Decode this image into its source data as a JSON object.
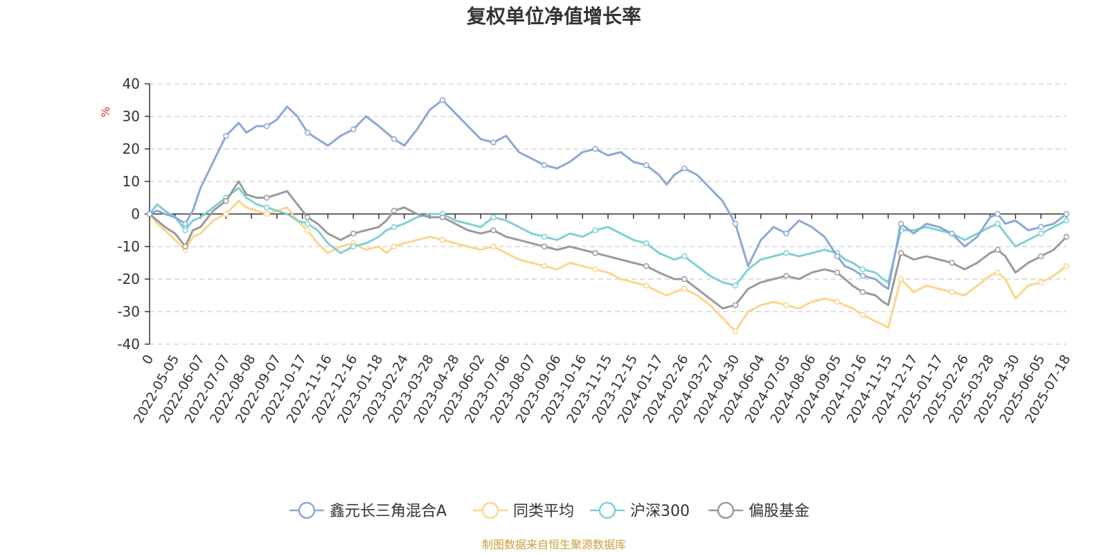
{
  "colors": {
    "series1": "#8aa8d6",
    "series2": "#fbd58a",
    "series3": "#7ed0d4",
    "series4": "#9a9a9a",
    "grid": "#cccccc",
    "axis": "#333333",
    "unit": "#e8251f",
    "source": "#c8a03c"
  },
  "footer": {
    "source_text": "制图数据来自恒生聚源数据库"
  },
  "chart_data": {
    "type": "line",
    "title": "复权单位净值增长率",
    "ylabel": "%",
    "ylim": [
      -40,
      40
    ],
    "yticks": [
      40,
      30,
      20,
      10,
      0,
      -10,
      -20,
      -30,
      -40
    ],
    "xticks": [
      "0",
      "2022-05-05",
      "2022-06-07",
      "2022-07-07",
      "2022-08-08",
      "2022-09-07",
      "2022-10-17",
      "2022-11-16",
      "2022-12-16",
      "2023-01-18",
      "2023-02-24",
      "2023-03-28",
      "2023-04-28",
      "2023-06-02",
      "2023-07-06",
      "2023-08-07",
      "2023-09-06",
      "2023-10-16",
      "2023-11-15",
      "2023-12-15",
      "2024-01-17",
      "2024-02-26",
      "2024-03-27",
      "2024-04-30",
      "2024-06-04",
      "2024-07-05",
      "2024-08-06",
      "2024-09-05",
      "2024-10-16",
      "2024-11-15",
      "2024-12-17",
      "2025-01-17",
      "2025-02-26",
      "2025-03-28",
      "2025-04-30",
      "2025-06-05",
      "2025-07-18"
    ],
    "x_range": [
      0,
      36
    ],
    "legend_position": "bottom-center",
    "grid": true,
    "series": [
      {
        "name": "鑫元长三角混合A",
        "x": [
          0,
          0.3,
          0.6,
          1,
          1.4,
          1.7,
          2,
          2.5,
          3,
          3.5,
          3.8,
          4.2,
          4.6,
          5,
          5.4,
          5.8,
          6.2,
          6.6,
          7,
          7.5,
          8,
          8.5,
          9,
          9.3,
          9.6,
          10,
          10.5,
          11,
          11.5,
          12,
          12.5,
          13,
          13.5,
          14,
          14.5,
          15,
          15.5,
          16,
          16.5,
          17,
          17.5,
          18,
          18.5,
          19,
          19.5,
          20,
          20.3,
          20.6,
          21,
          21.5,
          22,
          22.5,
          23,
          23.5,
          24,
          24.5,
          25,
          25.5,
          26,
          26.5,
          27,
          27.3,
          27.6,
          27.8,
          28,
          28.5,
          28.8,
          29,
          29.5,
          30,
          30.5,
          31,
          31.5,
          32,
          32.5,
          33,
          33.3,
          33.6,
          34,
          34.5,
          35,
          35.5,
          36
        ],
        "values": [
          0,
          1,
          0,
          -1,
          -3,
          1,
          8,
          16,
          24,
          28,
          25,
          27,
          27,
          29,
          33,
          30,
          25,
          23,
          21,
          24,
          26,
          30,
          27,
          25,
          23,
          21,
          26,
          32,
          35,
          31,
          27,
          23,
          22,
          24,
          19,
          17,
          15,
          14,
          16,
          19,
          20,
          18,
          19,
          16,
          15,
          12,
          9,
          12,
          14,
          12,
          8,
          4,
          -3,
          -16,
          -8,
          -4,
          -6,
          -2,
          -4,
          -7,
          -13,
          -16,
          -17,
          -18,
          -19,
          -20,
          -22,
          -23,
          -3,
          -6,
          -3,
          -4,
          -6,
          -10,
          -7,
          -1,
          0,
          -3,
          -2,
          -5,
          -4,
          -3,
          0
        ]
      },
      {
        "name": "同类平均",
        "x": [
          0,
          0.3,
          0.6,
          1,
          1.4,
          1.7,
          2,
          2.5,
          3,
          3.5,
          3.8,
          4.2,
          4.6,
          5,
          5.4,
          5.8,
          6.2,
          6.6,
          7,
          7.5,
          8,
          8.5,
          9,
          9.3,
          9.6,
          10,
          10.5,
          11,
          11.5,
          12,
          12.5,
          13,
          13.5,
          14,
          14.5,
          15,
          15.5,
          16,
          16.5,
          17,
          17.5,
          18,
          18.5,
          19,
          19.5,
          20,
          20.3,
          20.6,
          21,
          21.5,
          22,
          22.5,
          23,
          23.5,
          24,
          24.5,
          25,
          25.5,
          26,
          26.5,
          27,
          27.3,
          27.6,
          27.8,
          28,
          28.5,
          28.8,
          29,
          29.5,
          30,
          30.5,
          31,
          31.5,
          32,
          32.5,
          33,
          33.3,
          33.6,
          34,
          34.5,
          35,
          35.5,
          36
        ],
        "values": [
          0,
          -3,
          -5,
          -8,
          -11,
          -7,
          -6,
          -2,
          0,
          4,
          2,
          1,
          0,
          1,
          2,
          -2,
          -5,
          -9,
          -12,
          -10,
          -9,
          -11,
          -10,
          -12,
          -10,
          -9,
          -8,
          -7,
          -8,
          -9,
          -10,
          -11,
          -10,
          -12,
          -14,
          -15,
          -16,
          -17,
          -15,
          -16,
          -17,
          -18,
          -20,
          -21,
          -22,
          -24,
          -25,
          -24,
          -23,
          -25,
          -28,
          -32,
          -36,
          -30,
          -28,
          -27,
          -28,
          -29,
          -27,
          -26,
          -27,
          -28,
          -29,
          -30,
          -31,
          -33,
          -34,
          -35,
          -20,
          -24,
          -22,
          -23,
          -24,
          -25,
          -22,
          -19,
          -18,
          -20,
          -26,
          -22,
          -21,
          -19,
          -16
        ]
      },
      {
        "name": "沪深300",
        "x": [
          0,
          0.3,
          0.6,
          1,
          1.4,
          1.7,
          2,
          2.5,
          3,
          3.5,
          3.8,
          4.2,
          4.6,
          5,
          5.4,
          5.8,
          6.2,
          6.6,
          7,
          7.5,
          8,
          8.5,
          9,
          9.3,
          9.6,
          10,
          10.5,
          11,
          11.5,
          12,
          12.5,
          13,
          13.5,
          14,
          14.5,
          15,
          15.5,
          16,
          16.5,
          17,
          17.5,
          18,
          18.5,
          19,
          19.5,
          20,
          20.3,
          20.6,
          21,
          21.5,
          22,
          22.5,
          23,
          23.5,
          24,
          24.5,
          25,
          25.5,
          26,
          26.5,
          27,
          27.3,
          27.6,
          27.8,
          28,
          28.5,
          28.8,
          29,
          29.5,
          30,
          30.5,
          31,
          31.5,
          32,
          32.5,
          33,
          33.3,
          33.6,
          34,
          34.5,
          35,
          35.5,
          36
        ],
        "values": [
          0,
          3,
          1,
          -1,
          -5,
          -2,
          -1,
          2,
          5,
          8,
          5,
          3,
          2,
          1,
          0,
          -2,
          -3,
          -5,
          -9,
          -12,
          -10,
          -9,
          -7,
          -5,
          -4,
          -3,
          -1,
          0,
          0,
          -2,
          -3,
          -4,
          -1,
          -2,
          -4,
          -6,
          -7,
          -8,
          -6,
          -7,
          -5,
          -4,
          -6,
          -8,
          -9,
          -12,
          -13,
          -14,
          -13,
          -16,
          -19,
          -21,
          -22,
          -17,
          -14,
          -13,
          -12,
          -13,
          -12,
          -11,
          -12,
          -14,
          -15,
          -16,
          -17,
          -18,
          -20,
          -21,
          -5,
          -5,
          -4,
          -5,
          -6,
          -8,
          -6,
          -4,
          -3,
          -6,
          -10,
          -8,
          -6,
          -4,
          -2
        ]
      },
      {
        "name": "偏股基金",
        "x": [
          0,
          0.3,
          0.6,
          1,
          1.4,
          1.7,
          2,
          2.5,
          3,
          3.5,
          3.8,
          4.2,
          4.6,
          5,
          5.4,
          5.8,
          6.2,
          6.6,
          7,
          7.5,
          8,
          8.5,
          9,
          9.3,
          9.6,
          10,
          10.5,
          11,
          11.5,
          12,
          12.5,
          13,
          13.5,
          14,
          14.5,
          15,
          15.5,
          16,
          16.5,
          17,
          17.5,
          18,
          18.5,
          19,
          19.5,
          20,
          20.3,
          20.6,
          21,
          21.5,
          22,
          22.5,
          23,
          23.5,
          24,
          24.5,
          25,
          25.5,
          26,
          26.5,
          27,
          27.3,
          27.6,
          27.8,
          28,
          28.5,
          28.8,
          29,
          29.5,
          30,
          30.5,
          31,
          31.5,
          32,
          32.5,
          33,
          33.3,
          33.6,
          34,
          34.5,
          35,
          35.5,
          36
        ],
        "values": [
          0,
          -2,
          -4,
          -6,
          -10,
          -5,
          -4,
          1,
          4,
          10,
          6,
          5,
          5,
          6,
          7,
          3,
          -1,
          -3,
          -6,
          -8,
          -6,
          -5,
          -4,
          -2,
          1,
          2,
          0,
          -1,
          -1,
          -3,
          -5,
          -6,
          -5,
          -7,
          -8,
          -9,
          -10,
          -11,
          -10,
          -11,
          -12,
          -13,
          -14,
          -15,
          -16,
          -18,
          -19,
          -20,
          -20,
          -23,
          -26,
          -29,
          -28,
          -23,
          -21,
          -20,
          -19,
          -20,
          -18,
          -17,
          -18,
          -20,
          -22,
          -23,
          -24,
          -25,
          -27,
          -28,
          -12,
          -14,
          -13,
          -14,
          -15,
          -17,
          -15,
          -12,
          -11,
          -13,
          -18,
          -15,
          -13,
          -11,
          -7
        ]
      }
    ]
  }
}
